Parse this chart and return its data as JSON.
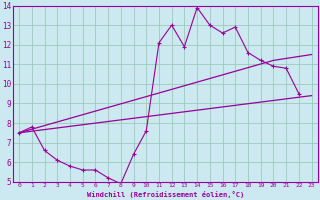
{
  "title": "",
  "xlabel": "Windchill (Refroidissement éolien,°C)",
  "ylabel": "",
  "bg_color": "#cce8f0",
  "line_color": "#990099",
  "grid_color": "#99ccbb",
  "xlim": [
    -0.5,
    23.5
  ],
  "ylim": [
    5,
    14
  ],
  "xticks": [
    0,
    1,
    2,
    3,
    4,
    5,
    6,
    7,
    8,
    9,
    10,
    11,
    12,
    13,
    14,
    15,
    16,
    17,
    18,
    19,
    20,
    21,
    22,
    23
  ],
  "yticks": [
    5,
    6,
    7,
    8,
    9,
    10,
    11,
    12,
    13,
    14
  ],
  "line1_x": [
    0,
    1,
    2,
    3,
    4,
    5,
    6,
    7,
    8,
    9,
    10,
    11,
    12,
    13,
    14,
    15,
    16,
    17,
    18,
    19,
    20,
    21,
    22
  ],
  "line1_y": [
    7.5,
    7.8,
    6.6,
    6.1,
    5.8,
    5.6,
    5.6,
    5.2,
    4.9,
    6.4,
    7.6,
    12.1,
    13.0,
    11.9,
    13.9,
    13.0,
    12.6,
    12.9,
    11.6,
    11.2,
    10.9,
    10.8,
    9.5
  ],
  "line2_x": [
    0,
    20,
    23
  ],
  "line2_y": [
    7.5,
    11.2,
    11.5
  ],
  "line3_x": [
    0,
    23
  ],
  "line3_y": [
    7.5,
    9.4
  ],
  "figsize": [
    3.2,
    2.0
  ],
  "dpi": 100
}
